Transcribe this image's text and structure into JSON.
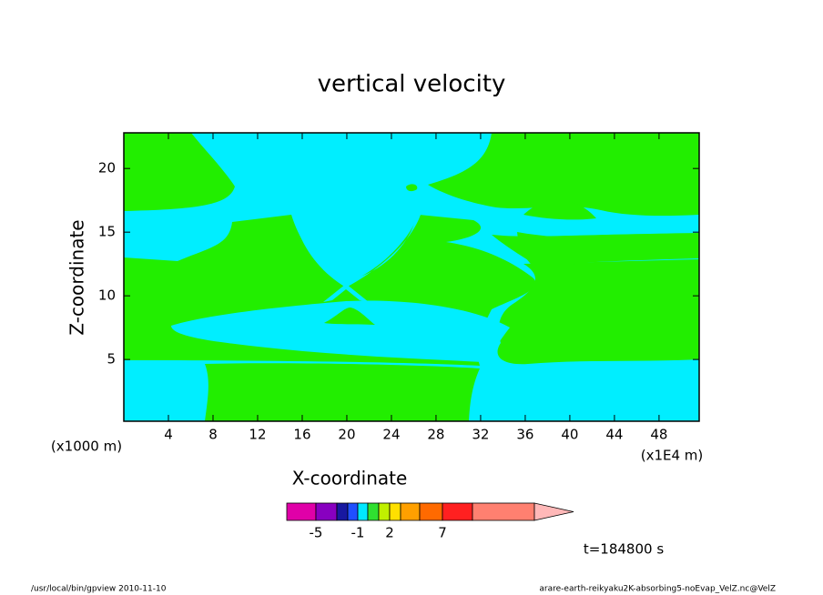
{
  "chart_data": {
    "type": "contour",
    "title": "vertical velocity",
    "xlabel": "X-coordinate",
    "ylabel": "Z-coordinate",
    "x_unit": "(x1E4 m)",
    "y_unit": "(x1000 m)",
    "xlim": [
      0,
      51.6
    ],
    "xticks": [
      4,
      8,
      12,
      16,
      20,
      24,
      28,
      32,
      36,
      40,
      44,
      48
    ],
    "ylim": [
      0.15,
      22.8
    ],
    "yticks": [
      5,
      10,
      15,
      20
    ],
    "fill_colors": {
      "low": "#00eeff",
      "high": "#22ee00"
    },
    "colorbar": {
      "colors": [
        "#e000a8",
        "#8800c0",
        "#1818a0",
        "#2050ff",
        "#00e8ff",
        "#30e030",
        "#c0f000",
        "#ffe000",
        "#ffa000",
        "#ff6a00",
        "#ff2020",
        "#ff8070",
        "#ffb8b8"
      ],
      "labels": [
        -5,
        -1,
        2,
        7
      ]
    },
    "time_label": "t=184800 s",
    "footer_left": "/usr/local/bin/gpview  2010-11-10",
    "footer_right": "arare-earth-reikyaku2K-absorbing5-noEvap_VelZ.nc@VelZ"
  }
}
